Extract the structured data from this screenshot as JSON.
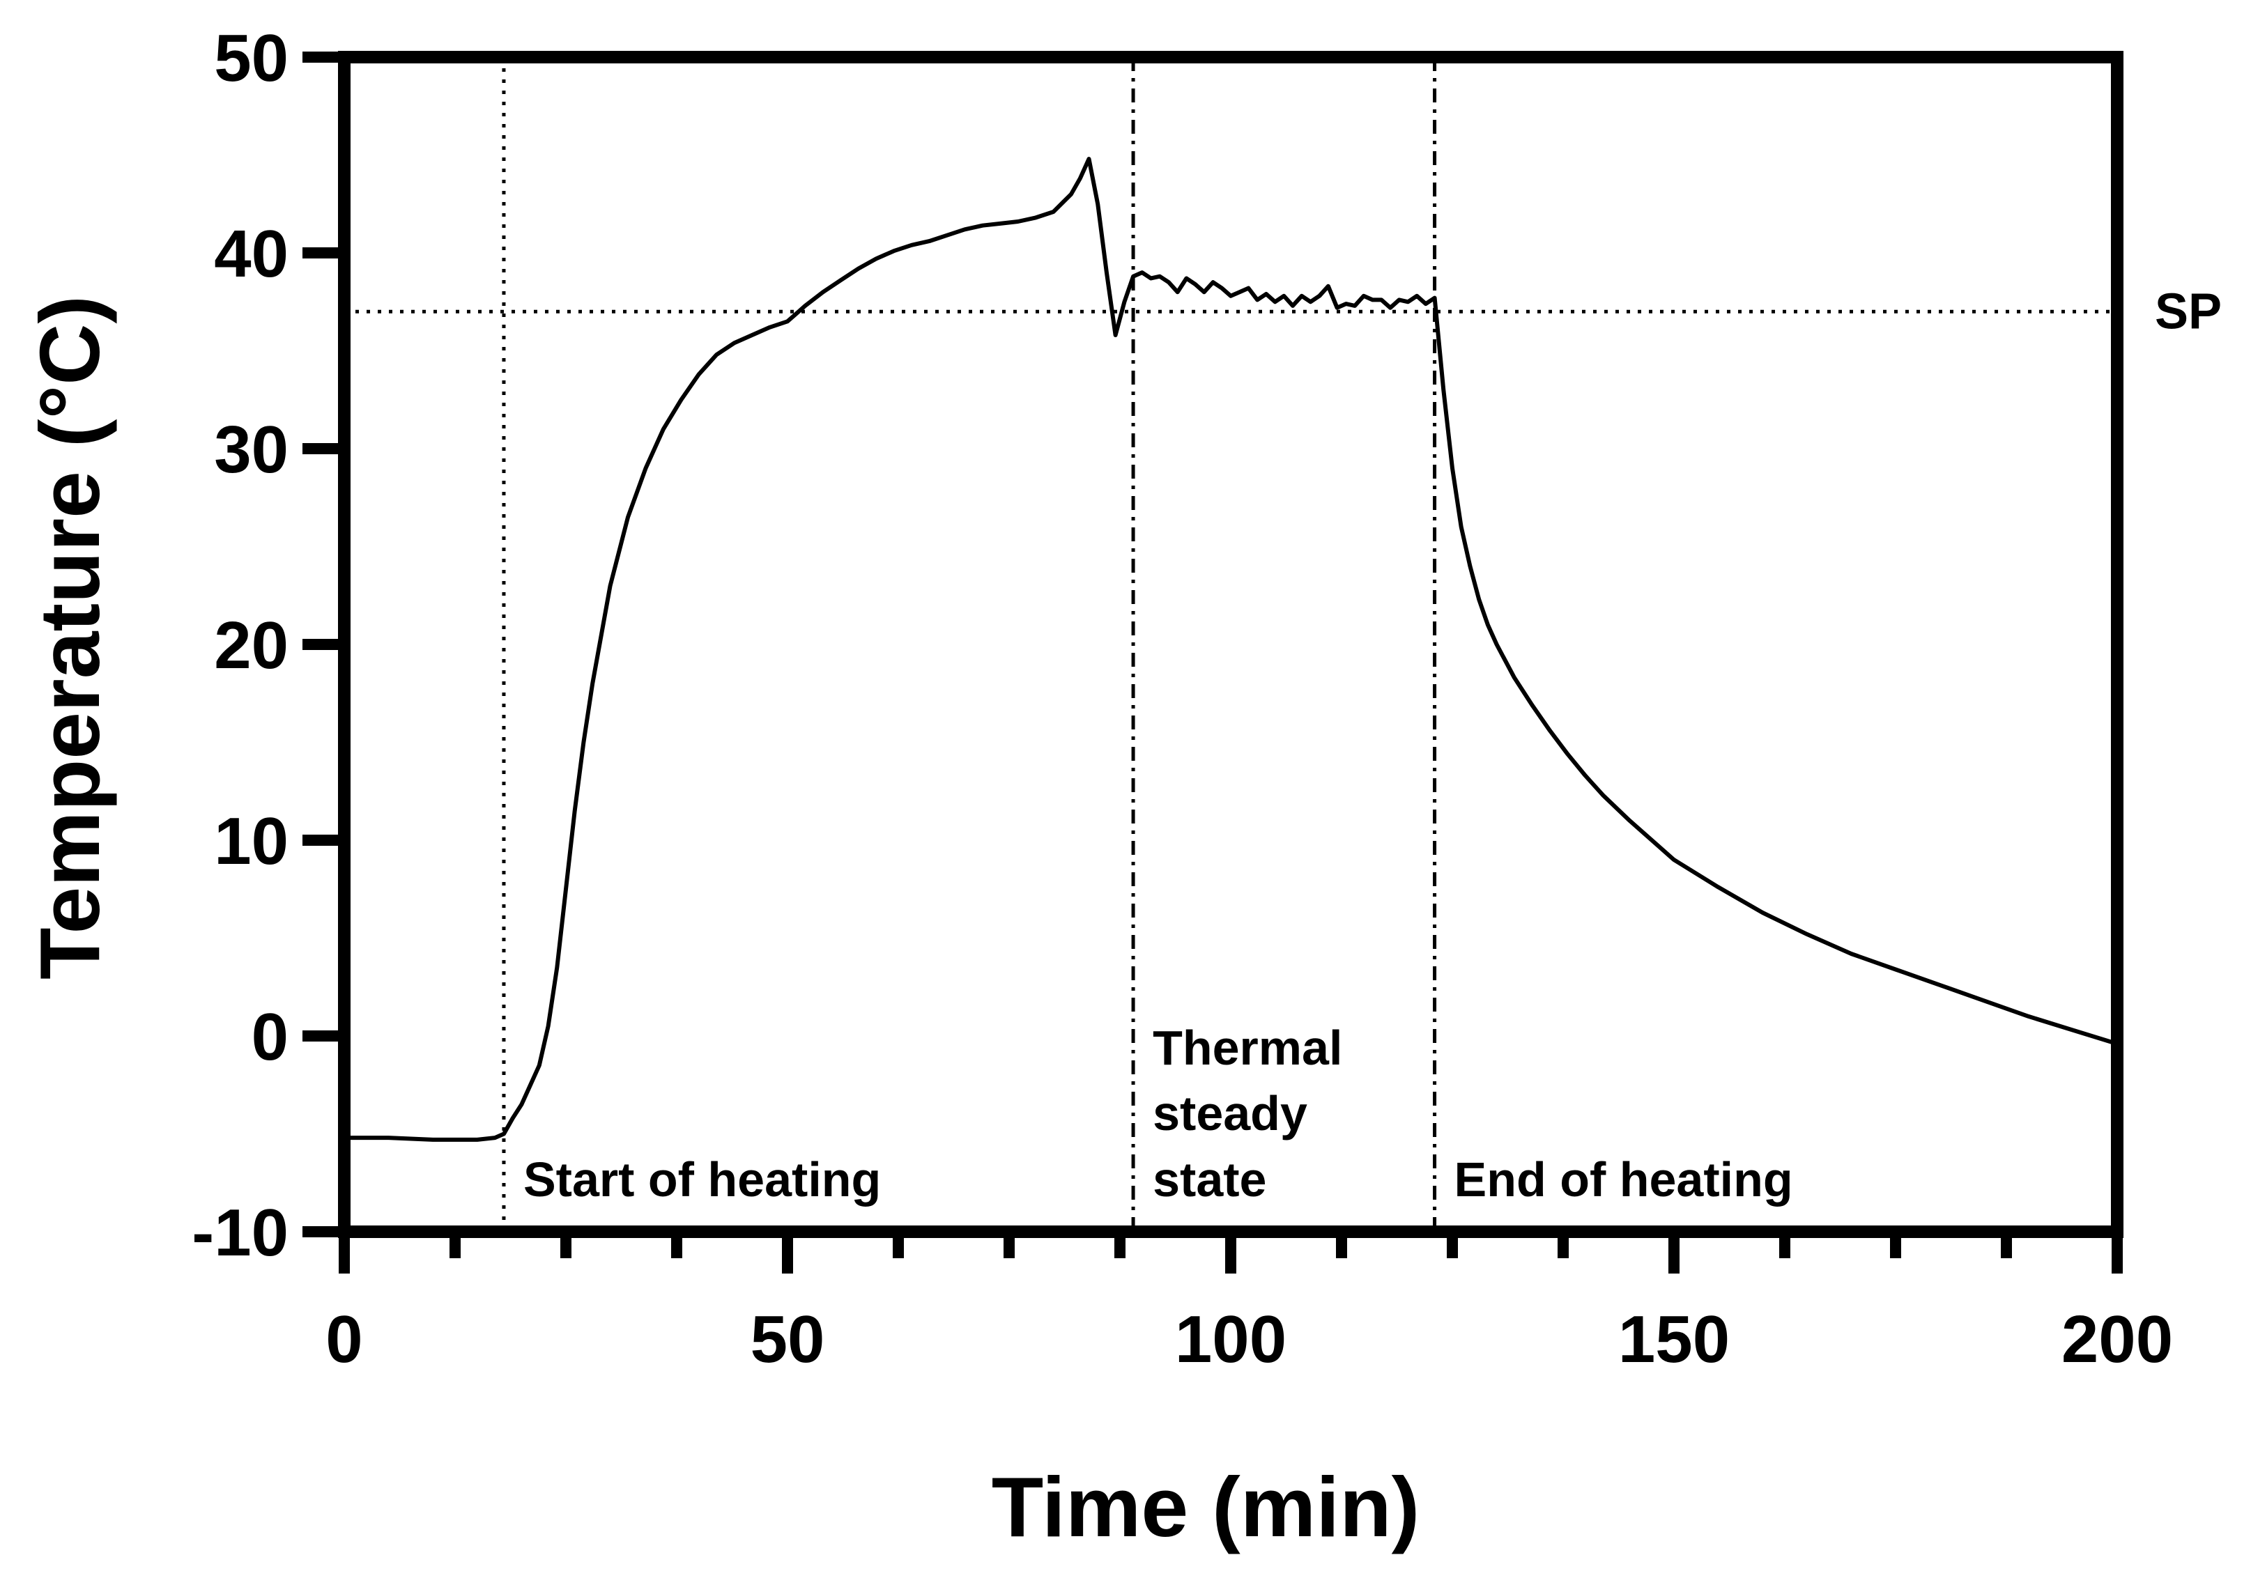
{
  "chart_data": {
    "type": "line",
    "title": "",
    "xlabel": "Time (min)",
    "ylabel": "Temperature (°C)",
    "xlim": [
      0,
      200
    ],
    "ylim": [
      -10,
      50
    ],
    "x_ticks": [
      0,
      50,
      100,
      150,
      200
    ],
    "y_ticks": [
      -10,
      0,
      10,
      20,
      30,
      40,
      50
    ],
    "x_tick_labels": [
      "0",
      "50",
      "100",
      "150",
      "200"
    ],
    "y_tick_labels": [
      "-10",
      "0",
      "10",
      "20",
      "30",
      "40",
      "50"
    ],
    "x_minor_ticks": [
      12.5,
      25,
      37.5,
      62.5,
      75,
      87.5,
      112.5,
      125,
      137.5,
      162.5,
      175,
      187.5
    ],
    "grid": false,
    "setpoint": {
      "label": "SP",
      "value": 37
    },
    "vertical_markers": [
      {
        "x": 18,
        "label": "Start of heating"
      },
      {
        "x": 89,
        "label": "Thermal steady state"
      },
      {
        "x": 123,
        "label": "End of heating"
      }
    ],
    "annotation_lines": [
      [
        "Start of heating"
      ],
      [
        "Thermal",
        "steady",
        "state"
      ],
      [
        "End of heating"
      ]
    ],
    "series": [
      {
        "name": "Temperature",
        "x": [
          0,
          5,
          10,
          15,
          17,
          18,
          19,
          20,
          21,
          22,
          23,
          24,
          25,
          26,
          27,
          28,
          29,
          30,
          32,
          34,
          36,
          38,
          40,
          42,
          44,
          46,
          48,
          50,
          52,
          54,
          56,
          58,
          60,
          62,
          64,
          66,
          68,
          70,
          72,
          74,
          76,
          78,
          80,
          82,
          83,
          84,
          85,
          86,
          87,
          88,
          89,
          90,
          91,
          92,
          93,
          94,
          95,
          96,
          97,
          98,
          99,
          100,
          101,
          102,
          103,
          104,
          105,
          106,
          107,
          108,
          109,
          110,
          111,
          112,
          113,
          114,
          115,
          116,
          117,
          118,
          119,
          120,
          121,
          122,
          123,
          124,
          125,
          126,
          127,
          128,
          129,
          130,
          132,
          134,
          136,
          138,
          140,
          142,
          145,
          148,
          150,
          155,
          160,
          165,
          170,
          175,
          180,
          185,
          190,
          195,
          200
        ],
        "y": [
          -5.2,
          -5.2,
          -5.3,
          -5.3,
          -5.2,
          -5.0,
          -4.2,
          -3.5,
          -2.5,
          -1.5,
          0.5,
          3.5,
          7.5,
          11.5,
          15.0,
          18.0,
          20.5,
          23.0,
          26.5,
          29.0,
          31.0,
          32.5,
          33.8,
          34.8,
          35.4,
          35.8,
          36.2,
          36.5,
          37.3,
          38.0,
          38.6,
          39.2,
          39.7,
          40.1,
          40.4,
          40.6,
          40.9,
          41.2,
          41.4,
          41.5,
          41.6,
          41.8,
          42.1,
          43.0,
          43.8,
          44.8,
          42.5,
          39.0,
          35.8,
          37.5,
          38.8,
          39.0,
          38.7,
          38.8,
          38.5,
          38.0,
          38.7,
          38.4,
          38.0,
          38.5,
          38.2,
          37.8,
          38.0,
          38.2,
          37.6,
          37.9,
          37.5,
          37.8,
          37.3,
          37.8,
          37.5,
          37.8,
          38.3,
          37.2,
          37.4,
          37.3,
          37.8,
          37.6,
          37.6,
          37.2,
          37.6,
          37.5,
          37.8,
          37.4,
          37.7,
          33.0,
          29.0,
          26.0,
          24.0,
          22.3,
          21.0,
          20.0,
          18.3,
          16.9,
          15.6,
          14.4,
          13.3,
          12.3,
          11.0,
          9.8,
          9.0,
          7.6,
          6.3,
          5.2,
          4.2,
          3.4,
          2.6,
          1.8,
          1.0,
          0.3,
          -0.4
        ]
      }
    ]
  }
}
